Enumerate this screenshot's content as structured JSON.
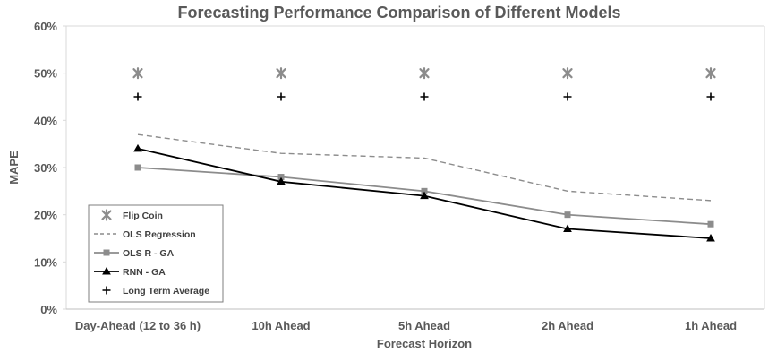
{
  "chart_data": {
    "type": "line",
    "title": "Forecasting Performance Comparison of Different Models",
    "xlabel": "Forecast Horizon",
    "ylabel": "MAPE",
    "categories": [
      "Day-Ahead (12 to 36 h)",
      "10h Ahead",
      "5h Ahead",
      "2h Ahead",
      "1h Ahead"
    ],
    "ylim": [
      0,
      60
    ],
    "yticks": [
      0,
      10,
      20,
      30,
      40,
      50,
      60
    ],
    "ytick_labels": [
      "0%",
      "10%",
      "20%",
      "30%",
      "40%",
      "50%",
      "60%"
    ],
    "grid": false,
    "legend_position": "bottom-left",
    "series": [
      {
        "name": "Flip Coin",
        "style": "markers",
        "marker": "x-star",
        "color": "#8c8c8c",
        "values": [
          50,
          50,
          50,
          50,
          50
        ]
      },
      {
        "name": "OLS Regression",
        "style": "dashed",
        "marker": "none",
        "color": "#8c8c8c",
        "values": [
          37,
          33,
          32,
          25,
          23
        ]
      },
      {
        "name": "OLS R - GA",
        "style": "solid",
        "marker": "square",
        "color": "#8c8c8c",
        "values": [
          30,
          28,
          25,
          20,
          18
        ]
      },
      {
        "name": "RNN - GA",
        "style": "solid",
        "marker": "triangle",
        "color": "#000000",
        "values": [
          34,
          27,
          24,
          17,
          15
        ]
      },
      {
        "name": "Long Term Average",
        "style": "markers",
        "marker": "plus",
        "color": "#000000",
        "values": [
          45,
          45,
          45,
          45,
          45
        ]
      }
    ]
  }
}
